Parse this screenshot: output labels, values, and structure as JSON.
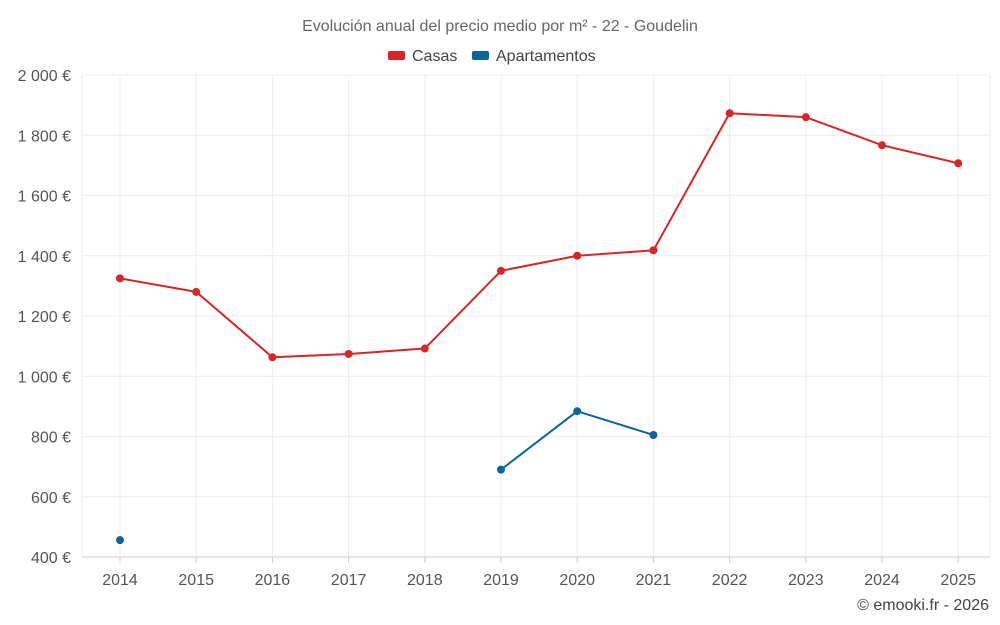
{
  "chart_data": {
    "type": "line",
    "title": "Evolución anual del precio medio por m² - 22 - Goudelin",
    "xlabel": "",
    "ylabel": "",
    "categories": [
      "2014",
      "2015",
      "2016",
      "2017",
      "2018",
      "2019",
      "2020",
      "2021",
      "2022",
      "2023",
      "2024",
      "2025"
    ],
    "y_ticks": [
      {
        "value": 400,
        "label": "400 €"
      },
      {
        "value": 600,
        "label": "600 €"
      },
      {
        "value": 800,
        "label": "800 €"
      },
      {
        "value": 1000,
        "label": "1 000 €"
      },
      {
        "value": 1200,
        "label": "1 200 €"
      },
      {
        "value": 1400,
        "label": "1 400 €"
      },
      {
        "value": 1600,
        "label": "1 600 €"
      },
      {
        "value": 1800,
        "label": "1 800 €"
      },
      {
        "value": 2000,
        "label": "2 000 €"
      }
    ],
    "ylim": [
      400,
      2000
    ],
    "grid": true,
    "legend_position": "top-center",
    "series": [
      {
        "name": "Casas",
        "color": "#d62728",
        "values": [
          1325,
          1280,
          1063,
          1074,
          1092,
          1350,
          1400,
          1418,
          1873,
          1860,
          1767,
          1707
        ]
      },
      {
        "name": "Apartamentos",
        "color": "#0a6699",
        "values": [
          456,
          null,
          null,
          null,
          null,
          690,
          884,
          805,
          null,
          null,
          null,
          null
        ]
      }
    ]
  },
  "credit": "© emooki.fr - 2026"
}
